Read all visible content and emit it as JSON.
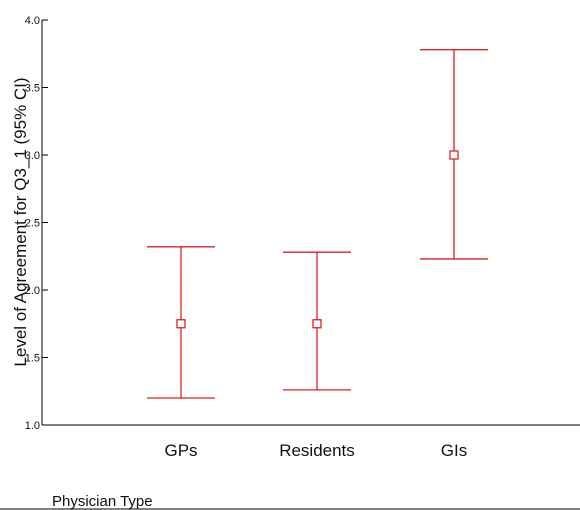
{
  "chart_data": {
    "type": "errorbar",
    "categories": [
      "GPs",
      "Residents",
      "GIs"
    ],
    "series": [
      {
        "mean": [
          1.75,
          1.75,
          3.0
        ],
        "lower": [
          1.2,
          1.26,
          2.23
        ],
        "upper": [
          2.32,
          2.28,
          3.78
        ]
      }
    ],
    "ylabel": "Level of Agreement for Q3_1 (95% CI)",
    "xlabel": "Physician Type",
    "ylim": [
      1.0,
      4.0
    ],
    "yticks": [
      "1.0",
      "1.5",
      "2.0",
      "2.5",
      "3.0",
      "3.5",
      "4.0"
    ],
    "grid": false,
    "colors": {
      "series": "#dd2222",
      "axis": "#000000"
    }
  }
}
